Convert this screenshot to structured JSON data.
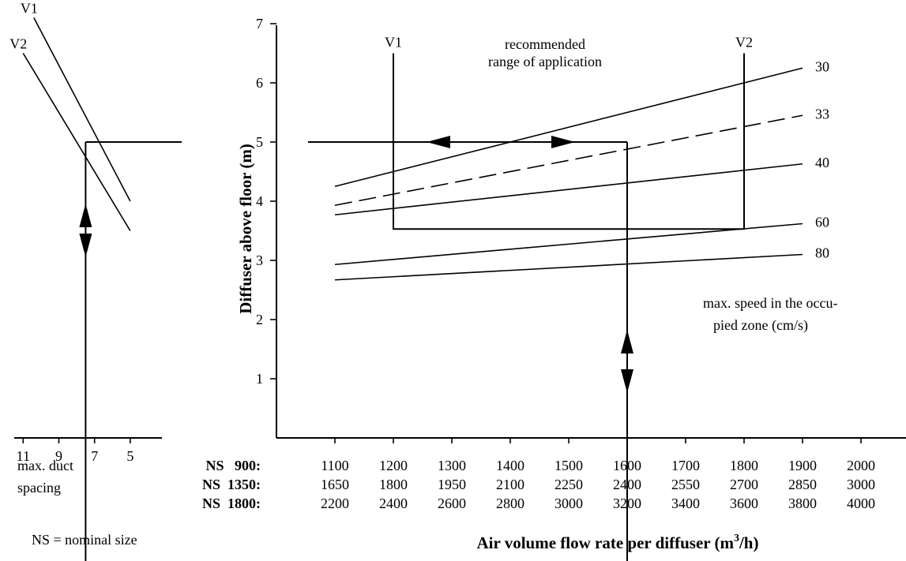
{
  "chart_data": {
    "type": "line",
    "ylabel": "Diffuser above floor (m)",
    "xlabel_text": "Air volume flow rate per diffuser (m",
    "xlabel_sup": "3",
    "xlabel_tail": "/h)",
    "ylim": [
      0,
      7
    ],
    "y_ticks": [
      "1",
      "2",
      "3",
      "4",
      "5",
      "6",
      "7"
    ],
    "x_rows": [
      {
        "label": "NS   900:",
        "values": [
          "1100",
          "1200",
          "1300",
          "1400",
          "1500",
          "1600",
          "1700",
          "1800",
          "1900",
          "2000"
        ]
      },
      {
        "label": "NS  1350:",
        "values": [
          "1650",
          "1800",
          "1950",
          "2100",
          "2250",
          "2400",
          "2550",
          "2700",
          "2850",
          "3000"
        ]
      },
      {
        "label": "NS  1800:",
        "values": [
          "2200",
          "2400",
          "2600",
          "2800",
          "3000",
          "3200",
          "3400",
          "3600",
          "3800",
          "4000"
        ]
      }
    ],
    "x_domain": [
      1000,
      2000
    ],
    "series": [
      {
        "name": "30",
        "x": [
          1100,
          1900
        ],
        "y": [
          4.25,
          6.25
        ],
        "dashed": false
      },
      {
        "name": "33",
        "x": [
          1100,
          1900
        ],
        "y": [
          3.93,
          5.45
        ],
        "dashed": true
      },
      {
        "name": "40",
        "x": [
          1100,
          1900
        ],
        "y": [
          3.77,
          4.63
        ],
        "dashed": false
      },
      {
        "name": "60",
        "x": [
          1100,
          1900
        ],
        "y": [
          2.93,
          3.62
        ],
        "dashed": false
      },
      {
        "name": "80",
        "x": [
          1100,
          1900
        ],
        "y": [
          2.67,
          3.1
        ],
        "dashed": false
      }
    ],
    "range_box": {
      "x_start": 1200,
      "x_end": 1800,
      "y_bottom": 3.53,
      "y_top": 6.5,
      "left_label": "V1",
      "right_label": "V2"
    },
    "range_annotation": [
      "recommended",
      "range of application"
    ],
    "example": {
      "y": 5.0,
      "x": 1600
    },
    "speed_note": [
      "max. speed in the occu-",
      "pied zone   (cm/s)"
    ],
    "spacing_chart": {
      "ticks": [
        "11",
        "9",
        "7",
        "5"
      ],
      "tick_values": [
        11,
        9,
        7,
        5
      ],
      "x_domain": [
        11.5,
        4.5
      ],
      "lines": [
        {
          "name": "V1",
          "x1": 10.4,
          "y1": 7.1,
          "x2": 5.0,
          "y2": 4.0
        },
        {
          "name": "V2",
          "x1": 11.0,
          "y1": 6.5,
          "x2": 5.0,
          "y2": 3.5
        }
      ],
      "example_x": 7.5,
      "label": [
        "max. duct",
        "spacing"
      ]
    },
    "footnote": "NS = nominal size"
  }
}
